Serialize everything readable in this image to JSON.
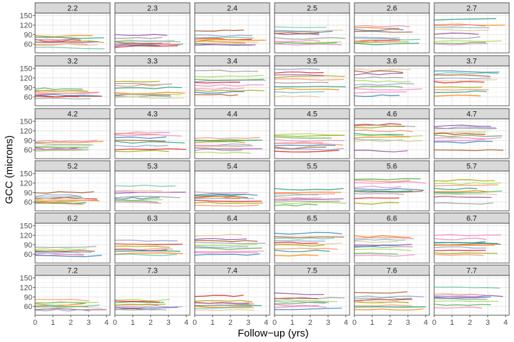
{
  "chart_data": {
    "type": "line",
    "title": "",
    "xlabel": "Follow−up (yrs)",
    "ylabel": "GCC (microns)",
    "xlim": [
      0,
      4.2
    ],
    "ylim": [
      32,
      158
    ],
    "x_ticks": [
      0,
      1,
      2,
      3,
      4
    ],
    "y_ticks": [
      60,
      90,
      120,
      150
    ],
    "grid": true,
    "legend": "none",
    "facet_rows": 6,
    "facet_cols": 6,
    "panel_labels": [
      "2.2",
      "2.3",
      "2.4",
      "2.5",
      "2.6",
      "2.7",
      "3.2",
      "3.3",
      "3.4",
      "3.5",
      "3.6",
      "3.7",
      "4.2",
      "4.3",
      "4.4",
      "4.5",
      "4.6",
      "4.7",
      "5.2",
      "5.3",
      "5.4",
      "5.5",
      "5.6",
      "5.7",
      "6.2",
      "6.3",
      "6.4",
      "6.5",
      "6.6",
      "6.7",
      "7.2",
      "7.3",
      "7.4",
      "7.5",
      "7.6",
      "7.7"
    ],
    "palette": [
      "#e41a1c",
      "#377eb8",
      "#4daf4a",
      "#984ea3",
      "#ff7f00",
      "#a6a600",
      "#a65628",
      "#f781bf",
      "#999999",
      "#66c2a5",
      "#fc8d62",
      "#8da0cb",
      "#e78ac3",
      "#a6d854",
      "#e5c494",
      "#1b9e77"
    ],
    "facets": [
      [
        [
          72,
          67,
          60,
          79,
          84,
          47,
          57,
          66,
          75
        ],
        [
          90,
          80,
          70,
          60,
          58,
          62,
          55,
          64,
          68,
          52
        ],
        [
          102,
          86,
          76,
          68,
          63,
          59,
          72,
          80,
          65,
          56
        ],
        [
          112,
          103,
          92,
          78,
          66,
          63,
          70,
          58,
          100,
          95
        ],
        [
          116,
          105,
          100,
          80,
          70,
          64,
          68,
          60,
          110,
          75
        ],
        [
          138,
          122,
          112,
          104,
          92,
          80,
          70,
          64,
          118,
          60
        ]
      ],
      [
        [
          86,
          78,
          70,
          65,
          60,
          56,
          62,
          80,
          74
        ],
        [
          110,
          96,
          88,
          72,
          62,
          58,
          66,
          100,
          70
        ],
        [
          142,
          126,
          114,
          96,
          86,
          74,
          66,
          110,
          104,
          80
        ],
        [
          148,
          136,
          124,
          116,
          92,
          84,
          76,
          62,
          130,
          106
        ],
        [
          146,
          132,
          122,
          110,
          92,
          84,
          74,
          64,
          140,
          100
        ],
        [
          140,
          128,
          118,
          106,
          90,
          82,
          76,
          64,
          134,
          112
        ]
      ],
      [
        [
          84,
          78,
          72,
          64,
          60,
          56,
          68,
          88,
          62
        ],
        [
          114,
          106,
          98,
          90,
          72,
          62,
          56,
          110,
          84
        ],
        [
          98,
          90,
          84,
          76,
          70,
          64,
          60,
          52,
          88,
          72
        ],
        [
          108,
          98,
          90,
          82,
          72,
          66,
          62,
          56,
          104,
          78
        ],
        [
          140,
          132,
          120,
          110,
          98,
          92,
          88,
          56,
          136,
          104
        ],
        [
          136,
          126,
          114,
          104,
          96,
          90,
          84,
          60,
          130,
          110
        ]
      ],
      [
        [
          90,
          80,
          72,
          66,
          62,
          58,
          54,
          76,
          68
        ],
        [
          112,
          96,
          88,
          76,
          68,
          62,
          58,
          92,
          72
        ],
        [
          90,
          82,
          76,
          70,
          64,
          58,
          48,
          84,
          74
        ],
        [
          100,
          90,
          82,
          74,
          68,
          62,
          56,
          50,
          86,
          70
        ],
        [
          132,
          122,
          108,
          100,
          92,
          84,
          72,
          56,
          126,
          96
        ],
        [
          128,
          112,
          102,
          94,
          88,
          84,
          76,
          56,
          118,
          92
        ]
      ],
      [
        [
          84,
          74,
          68,
          62,
          58,
          54,
          70,
          66
        ],
        [
          104,
          92,
          84,
          76,
          68,
          62,
          58,
          88,
          72
        ],
        [
          120,
          108,
          96,
          88,
          78,
          70,
          64,
          58,
          100,
          84
        ],
        [
          126,
          114,
          102,
          96,
          88,
          78,
          70,
          56,
          110,
          92
        ],
        [
          116,
          106,
          98,
          90,
          82,
          74,
          62,
          56,
          110,
          86
        ],
        [
          120,
          108,
          98,
          90,
          82,
          74,
          62,
          56,
          96,
          88
        ]
      ],
      [
        [
          80,
          72,
          66,
          62,
          56,
          52,
          48,
          70,
          60
        ],
        [
          80,
          72,
          66,
          60,
          56,
          52,
          48,
          76,
          64
        ],
        [
          94,
          76,
          68,
          62,
          58,
          54,
          50,
          70,
          64
        ],
        [
          100,
          86,
          78,
          70,
          64,
          58,
          52,
          84,
          74
        ],
        [
          104,
          90,
          80,
          72,
          64,
          56,
          50,
          86,
          76
        ],
        [
          120,
          100,
          92,
          84,
          76,
          64,
          56,
          96,
          88
        ]
      ]
    ]
  }
}
